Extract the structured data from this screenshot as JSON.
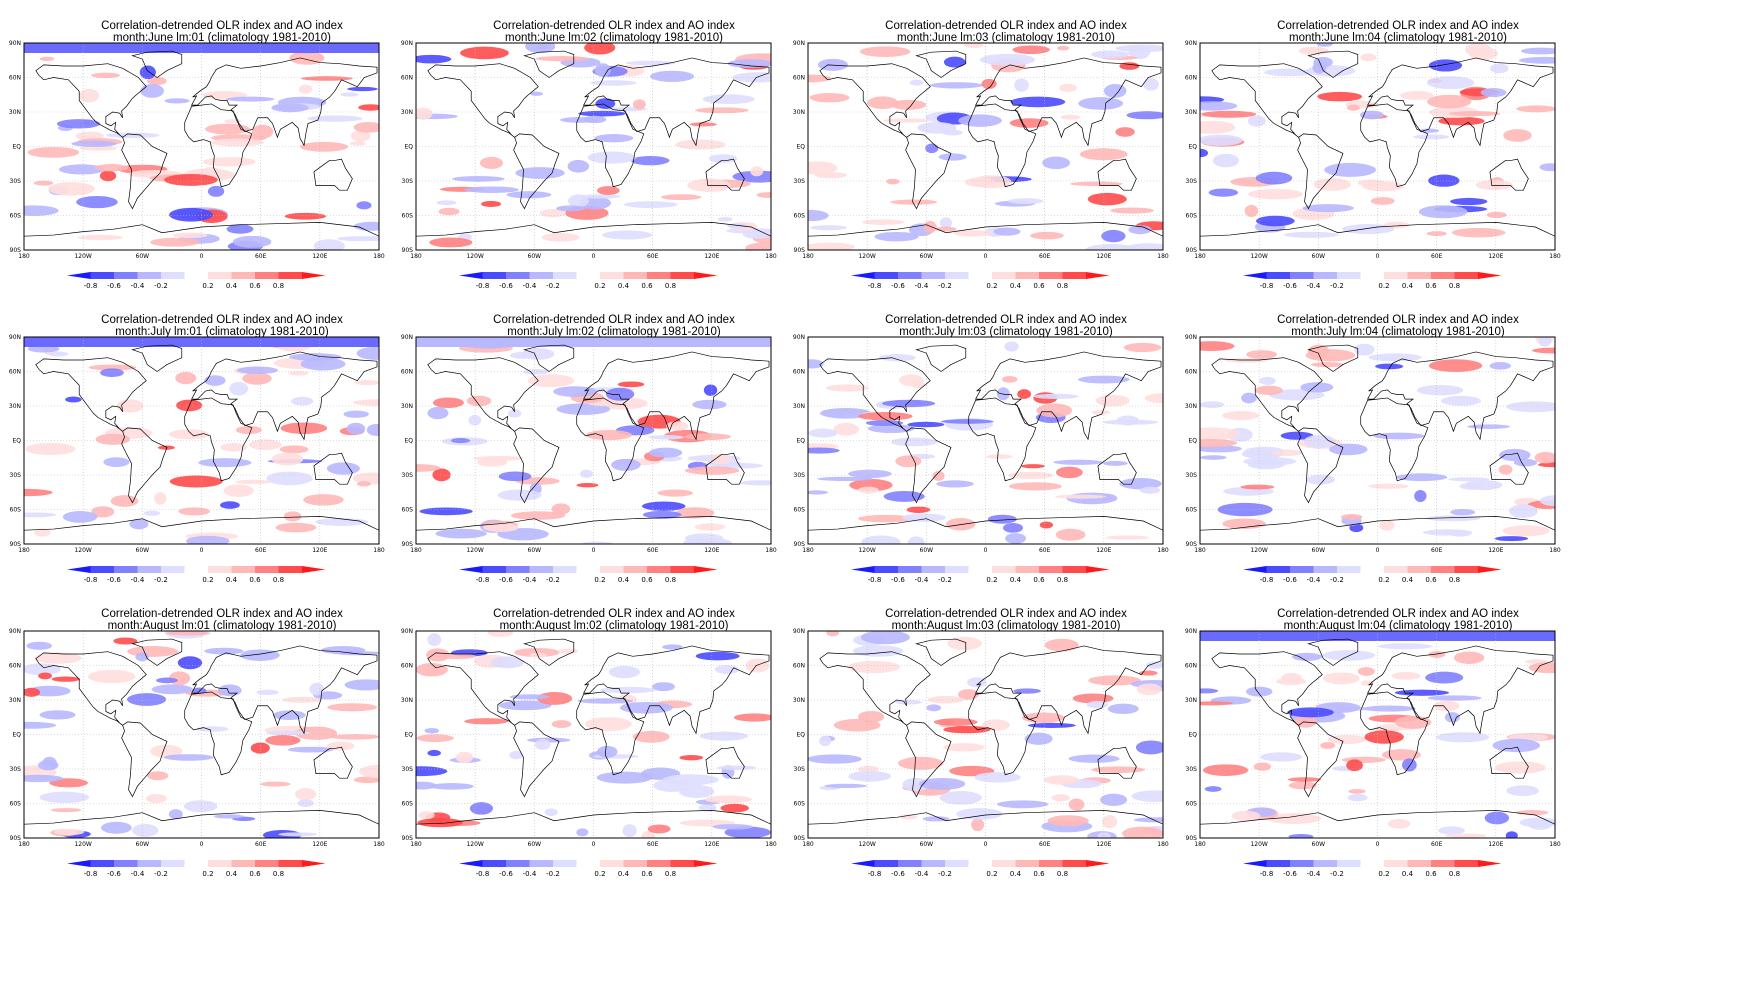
{
  "figure": {
    "title_line1": "Correlation-detrended OLR index and AO index",
    "panels": [
      {
        "line2": "month:June lm:01 (climatology 1981-2010)"
      },
      {
        "line2": "month:June lm:02 (climatology 1981-2010)"
      },
      {
        "line2": "month:June lm:03 (climatology 1981-2010)"
      },
      {
        "line2": "month:June lm:04 (climatology 1981-2010)"
      },
      {
        "line2": "month:July lm:01 (climatology 1981-2010)"
      },
      {
        "line2": "month:July lm:02 (climatology 1981-2010)"
      },
      {
        "line2": "month:July lm:03 (climatology 1981-2010)"
      },
      {
        "line2": "month:July lm:04 (climatology 1981-2010)"
      },
      {
        "line2": "month:August lm:01 (climatology 1981-2010)"
      },
      {
        "line2": "month:August lm:02 (climatology 1981-2010)"
      },
      {
        "line2": "month:August lm:03 (climatology 1981-2010)"
      },
      {
        "line2": "month:August lm:04 (climatology 1981-2010)"
      }
    ],
    "lon_ticks": [
      "180",
      "120W",
      "60W",
      "0",
      "60E",
      "120E",
      "180"
    ],
    "lat_ticks": [
      "90N",
      "60N",
      "30N",
      "EQ",
      "30S",
      "60S",
      "90S"
    ],
    "colorbar": {
      "labels": [
        "-0.8",
        "-0.6",
        "-0.4",
        "-0.2",
        "0.2",
        "0.4",
        "0.6",
        "0.8"
      ],
      "colors": [
        "#1a1aff",
        "#4b4bff",
        "#8181ff",
        "#b8b8ff",
        "#dedeff",
        "#ffffff",
        "#ffdede",
        "#ffb8b8",
        "#ff8181",
        "#ff4b4b",
        "#ff1a1a"
      ]
    }
  }
}
